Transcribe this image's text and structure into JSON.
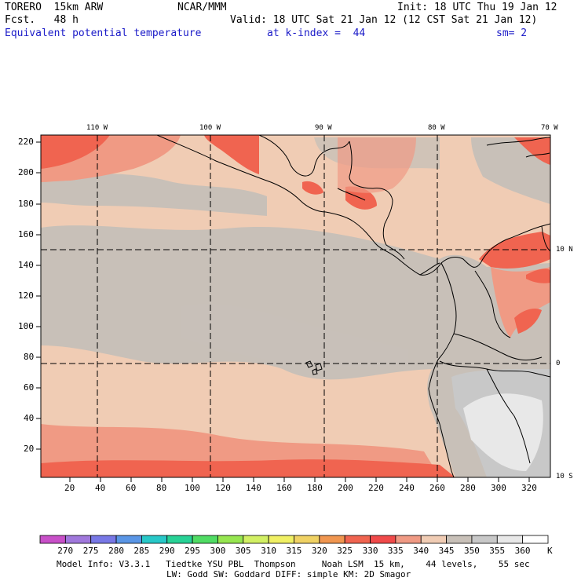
{
  "header": {
    "model": "TORERO  15km ARW",
    "org": "NCAR/MMM",
    "init": "Init: 18 UTC Thu 19 Jan 12",
    "fcst": "Fcst.   48 h",
    "valid": "Valid: 18 UTC Sat 21 Jan 12 (12 CST Sat 21 Jan 12)",
    "field": "Equivalent potential temperature",
    "level": "at k-index =  44",
    "smooth": "sm= 2"
  },
  "map": {
    "top_lon_labels": [
      "110 W",
      "100 W",
      "90 W",
      "80 W",
      "70 W"
    ],
    "right_lat_labels": [
      "10 N",
      "0",
      "10 S"
    ],
    "left_y_labels": [
      "220",
      "200",
      "180",
      "160",
      "140",
      "120",
      "100",
      "80",
      "60",
      "40",
      "20"
    ],
    "bottom_x_labels": [
      "20",
      "40",
      "60",
      "80",
      "100",
      "120",
      "140",
      "160",
      "180",
      "200",
      "220",
      "240",
      "260",
      "280",
      "300",
      "320"
    ]
  },
  "colorbar": {
    "labels": [
      "270",
      "275",
      "280",
      "285",
      "290",
      "295",
      "300",
      "305",
      "310",
      "315",
      "320",
      "325",
      "330",
      "335",
      "340",
      "345",
      "350",
      "355",
      "360"
    ],
    "unit": "K",
    "colors": [
      "#c850c8",
      "#a078dc",
      "#7878e6",
      "#5a96e6",
      "#28c8c8",
      "#28d296",
      "#50dc64",
      "#96e650",
      "#d2f064",
      "#f0f064",
      "#f0d264",
      "#f09650",
      "#f06450",
      "#f04a4a",
      "#f09a84",
      "#f0ccb4",
      "#c8c0b8",
      "#c8c8c8",
      "#e8e8e8",
      "#ffffff"
    ]
  },
  "footer": {
    "line1": "Model Info: V3.3.1   Tiedtke YSU PBL  Thompson     Noah LSM  15 km,    44 levels,    55 sec",
    "line2": "LW: Godd SW: Goddard DIFF: simple KM: 2D Smagor"
  }
}
